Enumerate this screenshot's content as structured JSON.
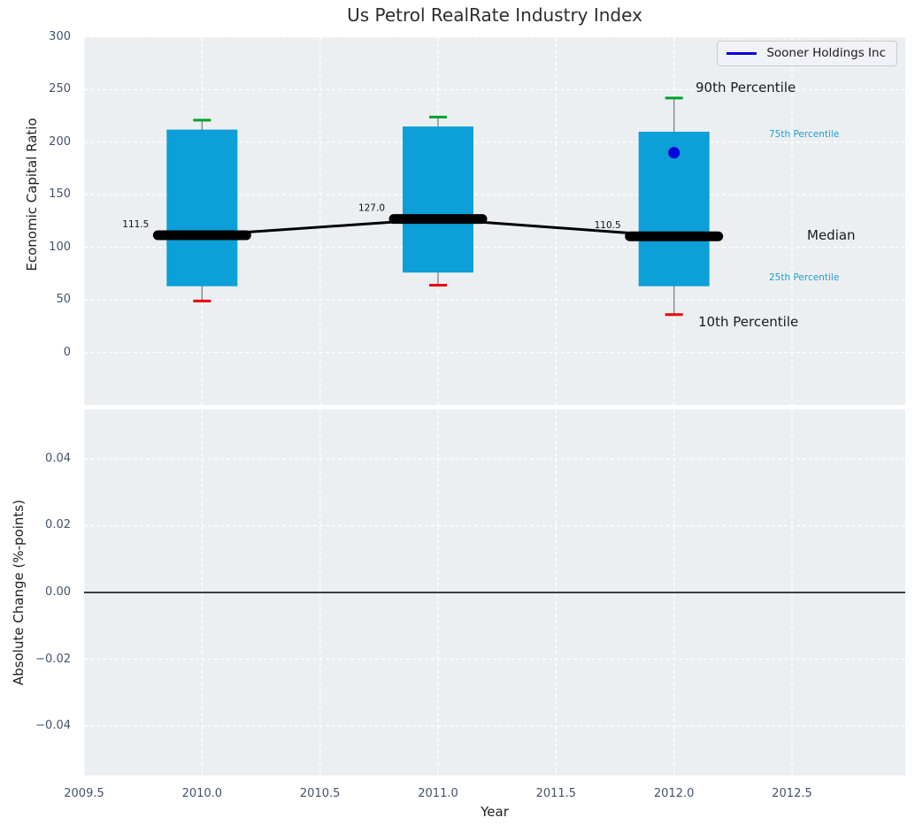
{
  "title": "Us Petrol RealRate Industry Index",
  "legend": {
    "label": "Sooner Holdings Inc",
    "position": "upper right"
  },
  "axes": {
    "top_ylabel": "Economic Capital Ratio",
    "bottom_ylabel": "Absolute Change (%-points)",
    "xlabel": "Year"
  },
  "annotations": {
    "p90": "90th Percentile",
    "p75": "75th Percentile",
    "median": "Median",
    "p25": "25th Percentile",
    "p10": "10th Percentile"
  },
  "colors": {
    "box": "#0c9fd8",
    "p90_cap": "#00a12e",
    "p10_cap": "#e8000b",
    "median_line": "#000000",
    "whisker": "#7f7f7f",
    "company": "#0000dd",
    "annotation_blue": "#1f9ed1",
    "tick_text": "#42526b",
    "plot_bg": "#eceff1",
    "grid": "#ffffff",
    "zero_line": "#000000"
  },
  "chart_data": [
    {
      "type": "boxplot",
      "title": "Us Petrol RealRate Industry Index",
      "xlabel": "Year",
      "ylabel": "Economic Capital Ratio",
      "xlim": [
        2009.5,
        2012.98
      ],
      "ylim": [
        -50,
        300
      ],
      "yticks": [
        300,
        250,
        200,
        150,
        100,
        50,
        0
      ],
      "xtick_values": [
        2009.5,
        2010.0,
        2010.5,
        2011.0,
        2011.5,
        2012.0,
        2012.5
      ],
      "xtick_labels": [
        "2009.5",
        "2010.0",
        "2010.5",
        "2011.0",
        "2011.5",
        "2012.0",
        "2012.5"
      ],
      "grid": true,
      "legend_position": "upper right",
      "boxes": [
        {
          "x": 2010,
          "p10": 49,
          "p25": 63,
          "median": 111.5,
          "p75": 212,
          "p90": 221,
          "label": "111.5"
        },
        {
          "x": 2011,
          "p10": 64,
          "p25": 76,
          "median": 127.0,
          "p75": 215,
          "p90": 224,
          "label": "127.0"
        },
        {
          "x": 2012,
          "p10": 36,
          "p25": 63,
          "median": 110.5,
          "p75": 210,
          "p90": 242,
          "label": "110.5"
        }
      ],
      "median_trend": {
        "x": [
          2010,
          2011,
          2012
        ],
        "y": [
          111.5,
          127.0,
          110.5
        ]
      },
      "series": [
        {
          "name": "Sooner Holdings Inc",
          "type": "scatter",
          "x": [
            2012
          ],
          "y": [
            190
          ]
        }
      ]
    },
    {
      "type": "line",
      "xlabel": "Year",
      "ylabel": "Absolute Change (%-points)",
      "xlim": [
        2009.5,
        2012.98
      ],
      "ylim": [
        -0.0548,
        0.0548
      ],
      "ytick_values": [
        0.04,
        0.02,
        0.0,
        -0.02,
        -0.04
      ],
      "ytick_labels": [
        "0.04",
        "0.02",
        "0.00",
        "−0.02",
        "−0.04"
      ],
      "zero_line": 0.0,
      "grid": true,
      "series": []
    }
  ]
}
